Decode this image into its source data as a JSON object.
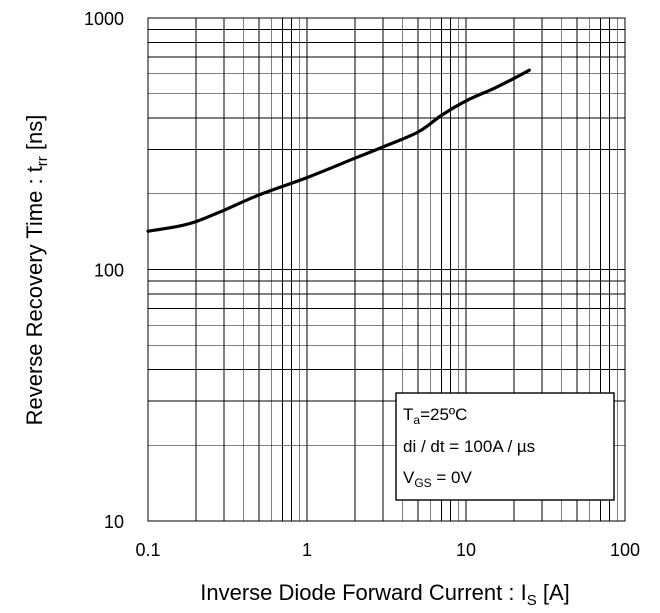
{
  "chart_data": {
    "type": "line",
    "x_scale": "log",
    "y_scale": "log",
    "xlim": [
      0.1,
      100
    ],
    "ylim": [
      10,
      1000
    ],
    "grid": true,
    "x_ticks": [
      "0.1",
      "1",
      "10",
      "100"
    ],
    "y_ticks": [
      "1000",
      "100",
      "10"
    ],
    "xlabel": {
      "main": "Inverse Diode Forward Current : I",
      "sub": "S",
      "unit": " [A]"
    },
    "ylabel": {
      "main": "Reverse Recovery Time : t",
      "sub": "rr",
      "unit": " [ns]"
    },
    "legend": {
      "placement": "bottom-right",
      "line1": {
        "a": "T",
        "sub": "a",
        "b": "=25ºC"
      },
      "line2": {
        "text": "di / dt = 100A / µs"
      },
      "line3": {
        "a": "V",
        "sub": "GS",
        "b": " = 0V"
      }
    },
    "series": [
      {
        "x": [
          0.1,
          0.15,
          0.2,
          0.3,
          0.5,
          1,
          2,
          3,
          5,
          7,
          10,
          15,
          20,
          25
        ],
        "y": [
          142,
          148,
          155,
          172,
          198,
          232,
          277,
          307,
          352,
          410,
          468,
          525,
          575,
          620
        ]
      }
    ]
  }
}
